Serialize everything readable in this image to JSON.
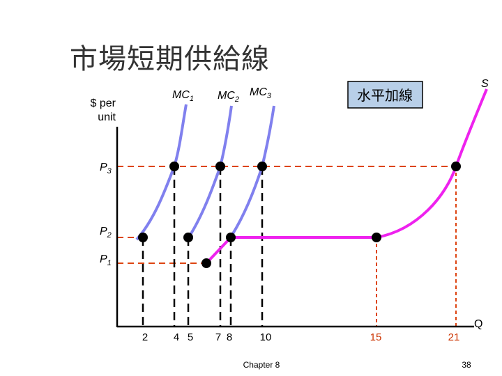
{
  "slide": {
    "title": "市場短期供給線",
    "footer_left": "Chapter 8",
    "page_number": "38"
  },
  "diagram": {
    "y_axis_label_line1": "$ per",
    "y_axis_label_line2": "unit",
    "x_axis_label": "Q",
    "price_levels": [
      {
        "name": "P",
        "sub": "3"
      },
      {
        "name": "P",
        "sub": "2"
      },
      {
        "name": "P",
        "sub": "1"
      }
    ],
    "curves": [
      {
        "name": "MC",
        "sub": "1"
      },
      {
        "name": "MC",
        "sub": "2"
      },
      {
        "name": "MC",
        "sub": "3"
      },
      {
        "name": "S",
        "sub": ""
      }
    ],
    "callout": "水平加線",
    "x_ticks": [
      "2",
      "4",
      "5",
      "7",
      "8",
      "10",
      "15",
      "21"
    ],
    "colors": {
      "mc_curves": "#8080ee",
      "supply": "#ee22ee",
      "guide_red": "#dd4411",
      "guide_black": "#000000",
      "callout_fill": "#b8cfe8"
    }
  }
}
